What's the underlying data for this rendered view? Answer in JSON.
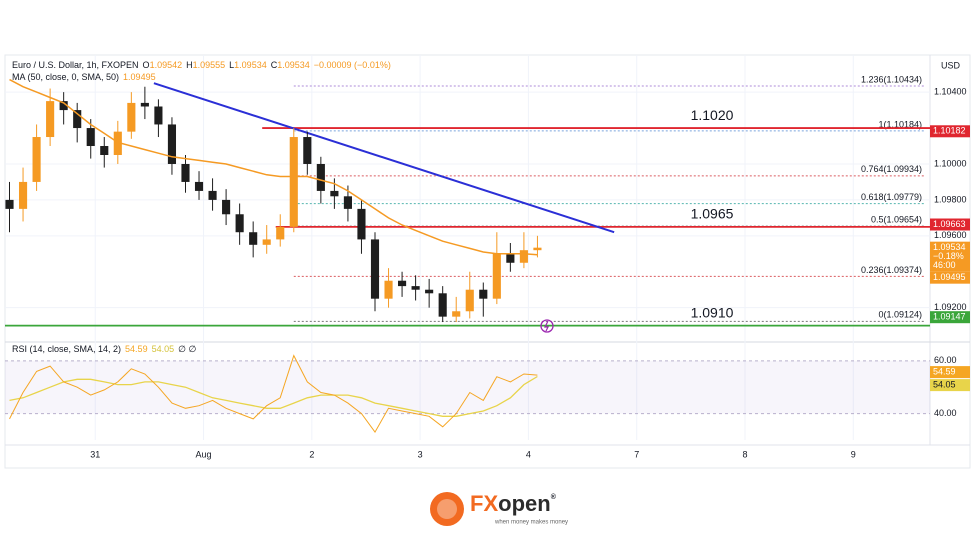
{
  "header": {
    "title": "Euro / U.S. Dollar, 1h, FXOPEN",
    "ohlc": [
      {
        "k": "O",
        "v": "1.09542"
      },
      {
        "k": "H",
        "v": "1.09555"
      },
      {
        "k": "L",
        "v": "1.09534"
      },
      {
        "k": "C",
        "v": "1.09534"
      }
    ],
    "change": "−0.00009 (−0.01%)",
    "ma_label": "MA (50, close, 0, SMA, 50)",
    "currency": "USD"
  },
  "chart_data": {
    "type": "candlestick",
    "x": [
      0,
      3,
      6,
      9,
      12,
      15,
      18,
      21,
      24,
      27,
      30,
      33,
      36,
      39,
      42,
      45,
      48,
      51,
      54,
      57,
      60,
      63,
      66,
      69,
      72,
      75,
      78,
      81,
      84,
      87,
      90,
      93,
      96,
      99,
      102,
      105,
      108,
      111,
      114,
      117
    ],
    "open": [
      1.098,
      1.0975,
      1.099,
      1.1015,
      1.1035,
      1.103,
      1.102,
      1.101,
      1.1005,
      1.1018,
      1.1034,
      1.1032,
      1.1022,
      1.1,
      1.099,
      1.0985,
      1.098,
      1.0972,
      1.0962,
      1.0955,
      1.0958,
      1.0965,
      1.1015,
      1.1,
      1.0985,
      1.0982,
      1.0975,
      1.0958,
      1.0925,
      1.0935,
      1.0932,
      1.093,
      1.0928,
      1.0915,
      1.0918,
      1.093,
      1.0925,
      1.095,
      1.0945,
      1.0952
    ],
    "high": [
      1.099,
      1.0998,
      1.1022,
      1.1042,
      1.104,
      1.1034,
      1.1025,
      1.1015,
      1.1024,
      1.104,
      1.1043,
      1.1036,
      1.1026,
      1.1005,
      1.0996,
      1.0992,
      1.0986,
      1.0978,
      1.0968,
      1.0966,
      1.0972,
      1.102,
      1.1018,
      1.1004,
      1.0992,
      1.0988,
      1.098,
      1.0962,
      1.0942,
      1.094,
      1.0938,
      1.0936,
      1.0932,
      1.0926,
      1.094,
      1.0934,
      1.0962,
      1.0956,
      1.0962,
      1.096
    ],
    "low": [
      1.0962,
      1.0968,
      1.0985,
      1.101,
      1.1022,
      1.1012,
      1.1003,
      1.0998,
      1.1,
      1.1014,
      1.1025,
      1.1015,
      1.0994,
      1.0984,
      1.098,
      1.0974,
      1.0966,
      1.0955,
      1.0948,
      1.095,
      1.0954,
      1.0962,
      1.0994,
      1.0978,
      1.0975,
      1.0968,
      1.095,
      1.0918,
      1.092,
      1.0926,
      1.0924,
      1.092,
      1.0912,
      1.0912,
      1.0914,
      1.0915,
      1.0922,
      1.094,
      1.0942,
      1.0948
    ],
    "close": [
      1.0975,
      1.099,
      1.1015,
      1.1035,
      1.103,
      1.102,
      1.101,
      1.1005,
      1.1018,
      1.1034,
      1.1032,
      1.1022,
      1.1,
      1.099,
      1.0985,
      1.098,
      1.0972,
      1.0962,
      1.0955,
      1.0958,
      1.0965,
      1.1015,
      1.1,
      1.0985,
      1.0982,
      1.0975,
      1.0958,
      1.0925,
      1.0935,
      1.0932,
      1.093,
      1.0928,
      1.0915,
      1.0918,
      1.093,
      1.0925,
      1.095,
      1.0945,
      1.0952,
      1.09534
    ],
    "up_color": "#f59a23",
    "down_color": "#1e1e1e",
    "current_extra": [
      "−0.18%",
      "46:00"
    ],
    "ma": {
      "color": "#f59a23",
      "values": [
        1.1047,
        1.1043,
        1.104,
        1.1037,
        1.1034,
        1.1028,
        1.1022,
        1.1017,
        1.1012,
        1.101,
        1.1008,
        1.1006,
        1.1004,
        1.1003,
        1.1002,
        1.1001,
        1.1,
        1.0998,
        1.0996,
        1.0994,
        1.0993,
        1.0993,
        1.0993,
        1.0991,
        1.0989,
        1.0985,
        1.098,
        1.0975,
        1.097,
        1.0966,
        1.0963,
        1.096,
        1.0957,
        1.0955,
        1.0953,
        1.0951,
        1.095,
        1.095,
        1.095,
        1.09495
      ]
    },
    "xlim": [
      -1,
      204
    ],
    "xticks": [
      {
        "value": 19,
        "label": "31"
      },
      {
        "value": 43,
        "label": "Aug"
      },
      {
        "value": 67,
        "label": "2"
      },
      {
        "value": 91,
        "label": "3"
      },
      {
        "value": 115,
        "label": "4"
      },
      {
        "value": 139,
        "label": "7"
      },
      {
        "value": 163,
        "label": "8"
      },
      {
        "value": 187,
        "label": "9"
      }
    ],
    "ylim": [
      1.0902,
      1.1059
    ],
    "yticks": [
      {
        "value": 1.104,
        "label": "1.10400"
      },
      {
        "value": 1.1,
        "label": "1.10000"
      },
      {
        "value": 1.098,
        "label": "1.09800"
      },
      {
        "value": 1.096,
        "label": "1.09600"
      },
      {
        "value": 1.092,
        "label": "1.09200"
      }
    ],
    "grid": true,
    "trendline": {
      "color": "#2b2fd6",
      "x": [
        32,
        134
      ],
      "values": [
        1.1045,
        1.0962
      ]
    },
    "levels": [
      {
        "label": "1.1020",
        "value": 1.102,
        "color": "#e0262f",
        "x": 56
      },
      {
        "label": "1.0965",
        "value": 1.0965,
        "color": "#e0262f",
        "x": 59
      },
      {
        "label": "1.0910",
        "value": 1.091,
        "color": "#3aa63a",
        "x": -1
      }
    ],
    "fib": [
      {
        "label": "1.236(1.10434)",
        "value": 1.10434,
        "color": "#9a6fd0"
      },
      {
        "label": "1(1.10184)",
        "value": 1.10184,
        "color": "#5b8fd6"
      },
      {
        "label": "0.764(1.09934)",
        "value": 1.09934,
        "color": "#d2343a"
      },
      {
        "label": "0.618(1.09779)",
        "value": 1.09779,
        "color": "#2aa39a"
      },
      {
        "label": "0.5(1.09654)",
        "value": 1.09654,
        "color": "#555555"
      },
      {
        "label": "0.236(1.09374)",
        "value": 1.09374,
        "color": "#d2343a"
      },
      {
        "label": "0(1.09124)",
        "value": 1.09124,
        "color": "#555555"
      }
    ],
    "price_tags": [
      {
        "value": 1.10182,
        "color": "#e0262f"
      },
      {
        "value": 1.09663,
        "color": "#e0262f"
      },
      {
        "value": 1.09147,
        "color": "#3aa63a"
      }
    ],
    "rsi": {
      "label": "RSI (14, close, SMA, 14, 2)",
      "extra": "∅ ∅",
      "color": "#f5a623",
      "ma_color": "#e8d44a",
      "values": [
        38,
        48,
        56,
        58,
        52,
        50,
        47,
        49,
        52,
        57,
        55,
        50,
        44,
        42,
        43,
        45,
        42,
        40,
        38,
        43,
        46,
        62,
        52,
        48,
        47,
        44,
        40,
        33,
        42,
        41,
        40,
        39,
        35,
        40,
        48,
        45,
        54,
        52,
        55,
        54.59
      ],
      "ma": [
        45,
        46,
        48,
        50,
        52,
        53,
        53,
        52,
        51,
        51,
        52,
        52,
        51,
        50,
        48,
        46,
        45,
        44,
        43,
        42,
        42,
        44,
        46,
        47,
        47,
        47,
        46,
        44,
        43,
        42,
        41,
        40,
        39,
        39,
        40,
        41,
        43,
        46,
        51,
        54.05
      ],
      "ylim": [
        30,
        66
      ],
      "yticks": [
        {
          "value": 60,
          "label": "60.00"
        },
        {
          "value": 40,
          "label": "40.00"
        }
      ]
    }
  },
  "logo": {
    "fx": "FX",
    "open": "open",
    "mark": "®",
    "tagline": "when money makes money"
  }
}
